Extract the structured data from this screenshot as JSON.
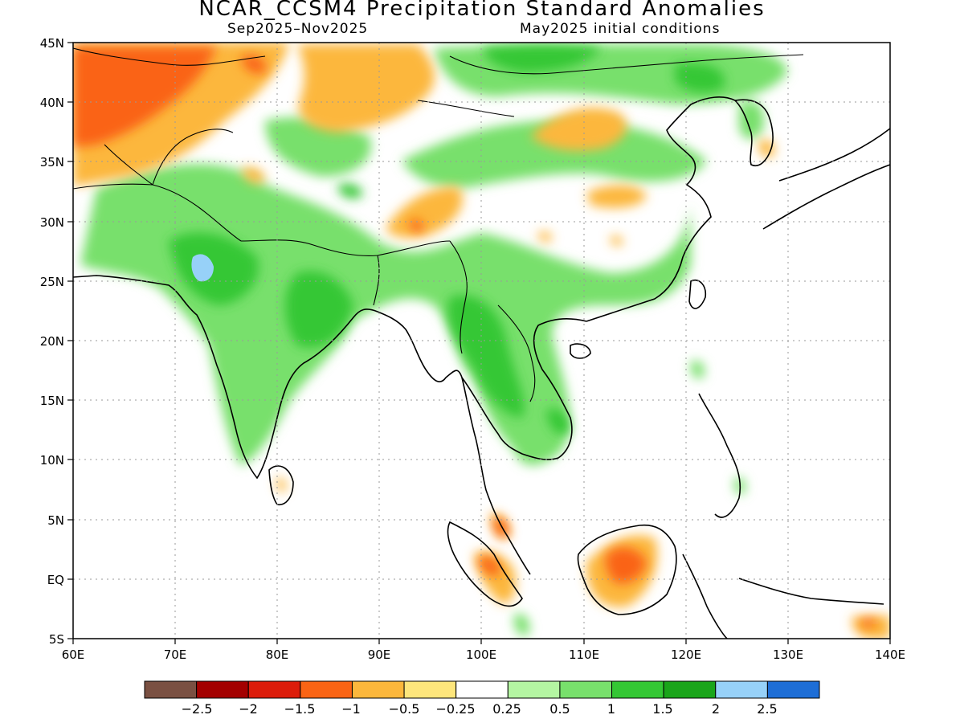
{
  "title": "NCAR_CCSM4 Precipitation Standard Anomalies",
  "subtitle_left": "Sep2025–Nov2025",
  "subtitle_right": "May2025 initial conditions",
  "map": {
    "lon_range": [
      60,
      140
    ],
    "lat_range": [
      -5,
      45
    ],
    "lon_ticks": [
      "60E",
      "70E",
      "80E",
      "90E",
      "100E",
      "110E",
      "120E",
      "130E",
      "140E"
    ],
    "lat_ticks": [
      "45N",
      "40N",
      "35N",
      "30N",
      "25N",
      "20N",
      "15N",
      "10N",
      "5N",
      "EQ",
      "5S"
    ],
    "grid": "dotted"
  },
  "colorbar": {
    "colors": [
      "#7a5042",
      "#a30000",
      "#dc1c0a",
      "#fa6414",
      "#fcb73c",
      "#fee67c",
      "#ffffff",
      "#b4f5a2",
      "#78e06c",
      "#34c734",
      "#1aa51a",
      "#97d1f8",
      "#1e6ed6"
    ],
    "labels": [
      "−2.5",
      "−2",
      "−1.5",
      "−1",
      "−0.5",
      "−0.25",
      "0.25",
      "0.5",
      "1",
      "1.5",
      "2",
      "2.5"
    ]
  }
}
